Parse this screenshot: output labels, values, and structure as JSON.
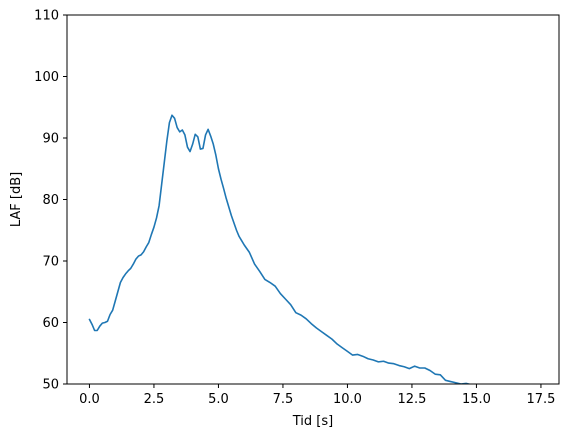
{
  "chart_data": {
    "type": "line",
    "title": "",
    "xlabel": "Tid [s]",
    "ylabel": "LAF [dB]",
    "xlim": [
      -0.87,
      18.2
    ],
    "ylim": [
      50,
      110
    ],
    "xticks": [
      0.0,
      2.5,
      5.0,
      7.5,
      10.0,
      12.5,
      15.0,
      17.5
    ],
    "xtick_labels": [
      "0.0",
      "2.5",
      "5.0",
      "7.5",
      "10.0",
      "12.5",
      "15.0",
      "17.5"
    ],
    "yticks": [
      50,
      60,
      70,
      80,
      90,
      100,
      110
    ],
    "ytick_labels": [
      "50",
      "60",
      "70",
      "80",
      "90",
      "100",
      "110"
    ],
    "grid": false,
    "legend": "none",
    "line_color": "#1f77b4",
    "series": [
      {
        "x": [
          0.0,
          0.1,
          0.2,
          0.3,
          0.4,
          0.5,
          0.6,
          0.7,
          0.8,
          0.9,
          1.0,
          1.1,
          1.2,
          1.3,
          1.4,
          1.5,
          1.6,
          1.7,
          1.8,
          1.9,
          2.0,
          2.1,
          2.2,
          2.3,
          2.4,
          2.5,
          2.6,
          2.7,
          2.8,
          2.9,
          3.0,
          3.1,
          3.2,
          3.3,
          3.4,
          3.5,
          3.6,
          3.7,
          3.8,
          3.9,
          4.0,
          4.1,
          4.2,
          4.3,
          4.4,
          4.5,
          4.6,
          4.7,
          4.8,
          4.9,
          5.0,
          5.1,
          5.2,
          5.3,
          5.4,
          5.5,
          5.6,
          5.7,
          5.8,
          5.9,
          6.0,
          6.2,
          6.4,
          6.6,
          6.8,
          7.0,
          7.2,
          7.4,
          7.6,
          7.8,
          8.0,
          8.2,
          8.4,
          8.6,
          8.8,
          9.0,
          9.2,
          9.4,
          9.6,
          9.8,
          10.0,
          10.2,
          10.4,
          10.6,
          10.8,
          11.0,
          11.2,
          11.4,
          11.6,
          11.8,
          12.0,
          12.2,
          12.4,
          12.6,
          12.8,
          13.0,
          13.2,
          13.4,
          13.6,
          13.8,
          14.0,
          14.2,
          14.4,
          14.6,
          14.8,
          15.0
        ],
        "y": [
          60.5,
          59.7,
          58.7,
          58.7,
          59.4,
          59.9,
          60.0,
          60.2,
          61.3,
          62.0,
          63.5,
          65.0,
          66.5,
          67.3,
          67.9,
          68.4,
          68.8,
          69.5,
          70.3,
          70.8,
          71.0,
          71.5,
          72.3,
          73.0,
          74.3,
          75.5,
          77.0,
          79.0,
          82.5,
          86.0,
          89.5,
          92.5,
          93.7,
          93.2,
          91.7,
          91.0,
          91.3,
          90.5,
          88.5,
          87.8,
          89.0,
          90.6,
          90.2,
          88.2,
          88.3,
          90.5,
          91.4,
          90.3,
          89.0,
          87.2,
          85.0,
          83.3,
          81.8,
          80.2,
          78.8,
          77.4,
          76.2,
          75.0,
          74.0,
          73.3,
          72.6,
          71.4,
          69.5,
          68.3,
          67.0,
          66.5,
          65.9,
          64.7,
          63.8,
          62.9,
          61.6,
          61.2,
          60.6,
          59.8,
          59.1,
          58.5,
          57.9,
          57.3,
          56.5,
          55.9,
          55.3,
          54.7,
          54.8,
          54.5,
          54.1,
          53.9,
          53.6,
          53.7,
          53.4,
          53.3,
          53.0,
          52.8,
          52.5,
          52.9,
          52.6,
          52.6,
          52.2,
          51.6,
          51.5,
          50.6,
          50.4,
          50.2,
          50.0,
          50.1,
          49.9,
          49.9
        ]
      }
    ]
  }
}
